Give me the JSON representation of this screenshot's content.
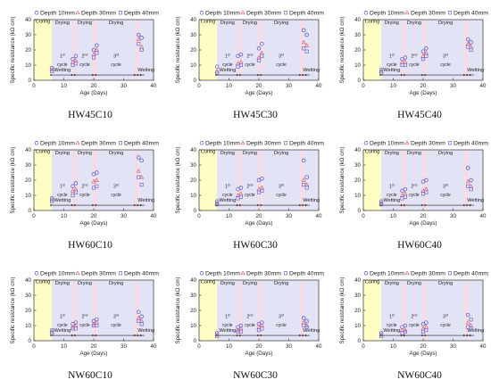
{
  "figure": {
    "legend": [
      "Depth 10mm",
      "Depth 30mm",
      "Depth 40mm"
    ],
    "xlabel": "Age (Days)",
    "ylabel": "Specific resistance (kΩ cm)",
    "phase_labels": [
      "Curing",
      "Wetting",
      "Drying",
      "Drying",
      "Drying",
      "Wetting"
    ],
    "cycle_labels": [
      [
        "1",
        "st",
        "cycle"
      ],
      [
        "2",
        "nd",
        "cycle"
      ],
      [
        "3",
        "rd",
        "cycle"
      ]
    ]
  },
  "colors": {
    "curing": "#fdfdc4",
    "wetting": "#e2e4f6",
    "drying": "#fbd9df",
    "series": [
      "#4a55c8",
      "#e0606e",
      "#6a6ad0"
    ]
  },
  "chart_data": [
    {
      "type": "scatter",
      "title": "HW45C10",
      "xlim": [
        0,
        40
      ],
      "ylim": [
        0,
        40
      ],
      "xticks": [
        0,
        10,
        20,
        30,
        40
      ],
      "yticks": [
        0,
        10,
        20,
        30,
        40
      ],
      "phases": [
        [
          "curing",
          0,
          6
        ],
        [
          "wetting",
          6,
          13
        ],
        [
          "drying",
          13,
          14
        ],
        [
          "wetting",
          14,
          20
        ],
        [
          "drying",
          20,
          21
        ],
        [
          "wetting",
          21,
          34
        ],
        [
          "drying",
          34,
          35
        ],
        [
          "wetting",
          35,
          40
        ]
      ],
      "series": [
        {
          "name": "Depth 10mm",
          "marker": "circle",
          "x": [
            6,
            13,
            14,
            20,
            21,
            35,
            36
          ],
          "y": [
            8,
            14,
            16,
            20,
            23,
            30,
            28
          ]
        },
        {
          "name": "Depth 30mm",
          "marker": "triangle",
          "x": [
            6,
            13,
            14,
            20,
            21,
            35,
            36
          ],
          "y": [
            7,
            12,
            13,
            17,
            20,
            27,
            22
          ]
        },
        {
          "name": "Depth 40mm",
          "marker": "square",
          "x": [
            6,
            13,
            14,
            20,
            21,
            35,
            36
          ],
          "y": [
            6,
            10,
            11,
            15,
            18,
            24,
            20
          ]
        }
      ]
    },
    {
      "type": "scatter",
      "title": "HW45C30",
      "xlim": [
        0,
        40
      ],
      "ylim": [
        0,
        40
      ],
      "xticks": [
        0,
        10,
        20,
        30,
        40
      ],
      "yticks": [
        0,
        10,
        20,
        30,
        40
      ],
      "phases": [
        [
          "curing",
          0,
          6
        ],
        [
          "wetting",
          6,
          13
        ],
        [
          "drying",
          13,
          14
        ],
        [
          "wetting",
          14,
          20
        ],
        [
          "drying",
          20,
          21
        ],
        [
          "wetting",
          21,
          34
        ],
        [
          "drying",
          34,
          35
        ],
        [
          "wetting",
          35,
          40
        ]
      ],
      "series": [
        {
          "name": "Depth 10mm",
          "marker": "circle",
          "x": [
            6,
            13,
            14,
            20,
            21,
            35,
            36
          ],
          "y": [
            9,
            16,
            17,
            21,
            24,
            33,
            30
          ]
        },
        {
          "name": "Depth 30mm",
          "marker": "triangle",
          "x": [
            6,
            13,
            14,
            20,
            21,
            35,
            36
          ],
          "y": [
            6,
            11,
            12,
            15,
            18,
            25,
            23
          ]
        },
        {
          "name": "Depth 40mm",
          "marker": "square",
          "x": [
            6,
            13,
            14,
            20,
            21,
            35,
            36
          ],
          "y": [
            5,
            9,
            10,
            13,
            16,
            21,
            19
          ]
        }
      ]
    },
    {
      "type": "scatter",
      "title": "HW45C40",
      "xlim": [
        0,
        40
      ],
      "ylim": [
        0,
        40
      ],
      "xticks": [
        0,
        10,
        20,
        30,
        40
      ],
      "yticks": [
        0,
        10,
        20,
        30,
        40
      ],
      "phases": [
        [
          "curing",
          0,
          6
        ],
        [
          "wetting",
          6,
          13
        ],
        [
          "drying",
          13,
          14
        ],
        [
          "wetting",
          14,
          20
        ],
        [
          "drying",
          20,
          21
        ],
        [
          "wetting",
          21,
          34
        ],
        [
          "drying",
          34,
          35
        ],
        [
          "wetting",
          35,
          40
        ]
      ],
      "series": [
        {
          "name": "Depth 10mm",
          "marker": "circle",
          "x": [
            6,
            13,
            14,
            20,
            21,
            35,
            36
          ],
          "y": [
            7,
            14,
            15,
            19,
            21,
            27,
            25
          ]
        },
        {
          "name": "Depth 30mm",
          "marker": "triangle",
          "x": [
            6,
            13,
            14,
            20,
            21,
            35,
            36
          ],
          "y": [
            6,
            12,
            12,
            16,
            18,
            24,
            22
          ]
        },
        {
          "name": "Depth 40mm",
          "marker": "square",
          "x": [
            6,
            13,
            14,
            20,
            21,
            35,
            36
          ],
          "y": [
            5,
            10,
            10,
            14,
            16,
            22,
            20
          ]
        }
      ]
    },
    {
      "type": "scatter",
      "title": "HW60C10",
      "xlim": [
        0,
        40
      ],
      "ylim": [
        0,
        40
      ],
      "xticks": [
        0,
        10,
        20,
        30,
        40
      ],
      "yticks": [
        0,
        10,
        20,
        30,
        40
      ],
      "phases": [
        [
          "curing",
          0,
          6
        ],
        [
          "wetting",
          6,
          13
        ],
        [
          "drying",
          13,
          14
        ],
        [
          "wetting",
          14,
          20
        ],
        [
          "drying",
          20,
          21
        ],
        [
          "wetting",
          21,
          34
        ],
        [
          "drying",
          34,
          35
        ],
        [
          "wetting",
          35,
          40
        ]
      ],
      "series": [
        {
          "name": "Depth 10mm",
          "marker": "circle",
          "x": [
            6,
            13,
            14,
            20,
            21,
            35,
            36
          ],
          "y": [
            8,
            16,
            18,
            24,
            25,
            35,
            33
          ]
        },
        {
          "name": "Depth 30mm",
          "marker": "triangle",
          "x": [
            6,
            13,
            14,
            20,
            21,
            35,
            36
          ],
          "y": [
            7,
            13,
            14,
            19,
            20,
            26,
            22
          ]
        },
        {
          "name": "Depth 40mm",
          "marker": "square",
          "x": [
            6,
            13,
            14,
            20,
            21,
            35,
            36
          ],
          "y": [
            6,
            10,
            12,
            15,
            16,
            22,
            17
          ]
        }
      ]
    },
    {
      "type": "scatter",
      "title": "HW60C30",
      "xlim": [
        0,
        40
      ],
      "ylim": [
        0,
        40
      ],
      "xticks": [
        0,
        10,
        20,
        30,
        40
      ],
      "yticks": [
        0,
        10,
        20,
        30,
        40
      ],
      "phases": [
        [
          "curing",
          0,
          6
        ],
        [
          "wetting",
          6,
          13
        ],
        [
          "drying",
          13,
          14
        ],
        [
          "wetting",
          14,
          20
        ],
        [
          "drying",
          20,
          21
        ],
        [
          "wetting",
          21,
          34
        ],
        [
          "drying",
          34,
          35
        ],
        [
          "wetting",
          35,
          40
        ]
      ],
      "series": [
        {
          "name": "Depth 10mm",
          "marker": "circle",
          "x": [
            6,
            13,
            14,
            20,
            21,
            35,
            36
          ],
          "y": [
            6,
            14,
            15,
            20,
            21,
            33,
            22
          ]
        },
        {
          "name": "Depth 30mm",
          "marker": "triangle",
          "x": [
            6,
            13,
            14,
            20,
            21,
            35,
            36
          ],
          "y": [
            5,
            10,
            11,
            14,
            15,
            20,
            17
          ]
        },
        {
          "name": "Depth 40mm",
          "marker": "square",
          "x": [
            6,
            13,
            14,
            20,
            21,
            35,
            36
          ],
          "y": [
            4,
            8,
            9,
            12,
            13,
            17,
            15
          ]
        }
      ]
    },
    {
      "type": "scatter",
      "title": "HW60C40",
      "xlim": [
        0,
        40
      ],
      "ylim": [
        0,
        40
      ],
      "xticks": [
        0,
        10,
        20,
        30,
        40
      ],
      "yticks": [
        0,
        10,
        20,
        30,
        40
      ],
      "phases": [
        [
          "curing",
          0,
          6
        ],
        [
          "wetting",
          6,
          13
        ],
        [
          "drying",
          13,
          14
        ],
        [
          "wetting",
          14,
          20
        ],
        [
          "drying",
          20,
          21
        ],
        [
          "wetting",
          21,
          34
        ],
        [
          "drying",
          34,
          35
        ],
        [
          "wetting",
          35,
          40
        ]
      ],
      "series": [
        {
          "name": "Depth 10mm",
          "marker": "circle",
          "x": [
            6,
            13,
            14,
            20,
            21,
            35,
            36
          ],
          "y": [
            6,
            13,
            14,
            19,
            20,
            28,
            20
          ]
        },
        {
          "name": "Depth 30mm",
          "marker": "triangle",
          "x": [
            6,
            13,
            14,
            20,
            21,
            35,
            36
          ],
          "y": [
            5,
            10,
            11,
            13,
            14,
            19,
            16
          ]
        },
        {
          "name": "Depth 40mm",
          "marker": "square",
          "x": [
            6,
            13,
            14,
            20,
            21,
            35,
            36
          ],
          "y": [
            4,
            8,
            9,
            11,
            12,
            16,
            14
          ]
        }
      ]
    },
    {
      "type": "scatter",
      "title": "NW60C10",
      "xlim": [
        0,
        40
      ],
      "ylim": [
        0,
        40
      ],
      "xticks": [
        0,
        10,
        20,
        30,
        40
      ],
      "yticks": [
        0,
        10,
        20,
        30,
        40
      ],
      "phases": [
        [
          "curing",
          0,
          6
        ],
        [
          "wetting",
          6,
          13
        ],
        [
          "drying",
          13,
          14
        ],
        [
          "wetting",
          14,
          20
        ],
        [
          "drying",
          20,
          21
        ],
        [
          "wetting",
          21,
          34
        ],
        [
          "drying",
          34,
          35
        ],
        [
          "wetting",
          35,
          40
        ]
      ],
      "series": [
        {
          "name": "Depth 10mm",
          "marker": "circle",
          "x": [
            6,
            13,
            14,
            20,
            21,
            35,
            36
          ],
          "y": [
            7,
            11,
            12,
            13,
            14,
            19,
            16
          ]
        },
        {
          "name": "Depth 30mm",
          "marker": "triangle",
          "x": [
            6,
            13,
            14,
            20,
            21,
            35,
            36
          ],
          "y": [
            6,
            9,
            10,
            11,
            12,
            15,
            13
          ]
        },
        {
          "name": "Depth 40mm",
          "marker": "square",
          "x": [
            6,
            13,
            14,
            20,
            21,
            35,
            36
          ],
          "y": [
            5,
            8,
            8,
            10,
            10,
            13,
            11
          ]
        }
      ]
    },
    {
      "type": "scatter",
      "title": "NW60C30",
      "xlim": [
        0,
        40
      ],
      "ylim": [
        0,
        40
      ],
      "xticks": [
        0,
        10,
        20,
        30,
        40
      ],
      "yticks": [
        0,
        10,
        20,
        30,
        40
      ],
      "phases": [
        [
          "curing",
          0,
          6
        ],
        [
          "wetting",
          6,
          13
        ],
        [
          "drying",
          13,
          14
        ],
        [
          "wetting",
          14,
          20
        ],
        [
          "drying",
          20,
          21
        ],
        [
          "wetting",
          21,
          34
        ],
        [
          "drying",
          34,
          35
        ],
        [
          "wetting",
          35,
          40
        ]
      ],
      "series": [
        {
          "name": "Depth 10mm",
          "marker": "circle",
          "x": [
            6,
            13,
            14,
            20,
            21,
            35,
            36
          ],
          "y": [
            5,
            9,
            10,
            11,
            12,
            15,
            13
          ]
        },
        {
          "name": "Depth 30mm",
          "marker": "triangle",
          "x": [
            6,
            13,
            14,
            20,
            21,
            35,
            36
          ],
          "y": [
            4,
            7,
            8,
            9,
            10,
            12,
            10
          ]
        },
        {
          "name": "Depth 40mm",
          "marker": "square",
          "x": [
            6,
            13,
            14,
            20,
            21,
            35,
            36
          ],
          "y": [
            3,
            6,
            6,
            7,
            8,
            10,
            9
          ]
        }
      ]
    },
    {
      "type": "scatter",
      "title": "NW60C40",
      "xlim": [
        0,
        40
      ],
      "ylim": [
        0,
        40
      ],
      "xticks": [
        0,
        10,
        20,
        30,
        40
      ],
      "yticks": [
        0,
        10,
        20,
        30,
        40
      ],
      "phases": [
        [
          "curing",
          0,
          6
        ],
        [
          "wetting",
          6,
          13
        ],
        [
          "drying",
          13,
          14
        ],
        [
          "wetting",
          14,
          20
        ],
        [
          "drying",
          20,
          21
        ],
        [
          "wetting",
          21,
          34
        ],
        [
          "drying",
          34,
          35
        ],
        [
          "wetting",
          35,
          40
        ]
      ],
      "series": [
        {
          "name": "Depth 10mm",
          "marker": "circle",
          "x": [
            6,
            13,
            14,
            20,
            21,
            35,
            36
          ],
          "y": [
            5,
            9,
            10,
            11,
            12,
            17,
            14
          ]
        },
        {
          "name": "Depth 30mm",
          "marker": "triangle",
          "x": [
            6,
            13,
            14,
            20,
            21,
            35,
            36
          ],
          "y": [
            4,
            7,
            7,
            8,
            9,
            12,
            10
          ]
        },
        {
          "name": "Depth 40mm",
          "marker": "square",
          "x": [
            6,
            13,
            14,
            20,
            21,
            35,
            36
          ],
          "y": [
            3,
            5,
            6,
            6,
            7,
            9,
            8
          ]
        }
      ]
    }
  ]
}
